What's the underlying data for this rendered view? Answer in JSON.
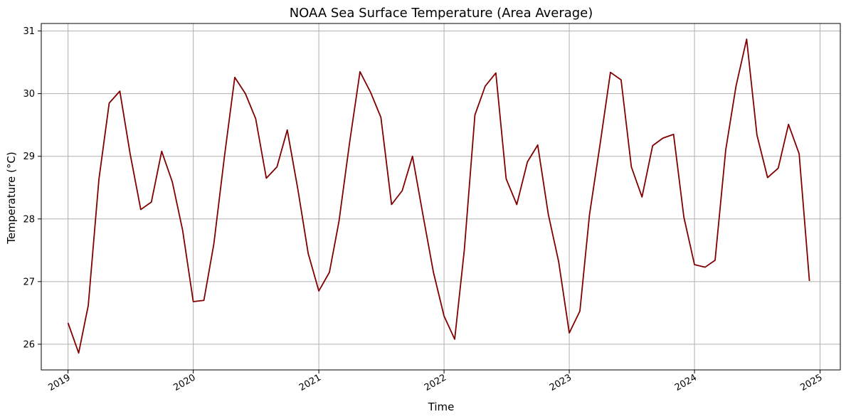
{
  "chart_data": {
    "type": "line",
    "title": "NOAA Sea Surface Temperature (Area Average)",
    "xlabel": "Time",
    "ylabel": "Temperature (°C)",
    "xlim": [
      "2018-10-15",
      "2025-03-01"
    ],
    "ylim": [
      25.59,
      31.12
    ],
    "x_ticks": [
      "2019-01-01",
      "2020-01-01",
      "2021-01-01",
      "2022-01-01",
      "2023-01-01",
      "2024-01-01",
      "2025-01-01"
    ],
    "x_tick_labels": [
      "2019",
      "2020",
      "2021",
      "2022",
      "2023",
      "2024",
      "2025"
    ],
    "y_ticks": [
      26,
      27,
      28,
      29,
      30,
      31
    ],
    "y_tick_labels": [
      "26",
      "27",
      "28",
      "29",
      "30",
      "31"
    ],
    "grid": true,
    "line_color": "#800000",
    "series": [
      {
        "x": [
          "2019-01",
          "2019-02",
          "2019-03",
          "2019-04",
          "2019-05",
          "2019-06",
          "2019-07",
          "2019-08",
          "2019-09",
          "2019-10",
          "2019-11",
          "2019-12",
          "2020-01",
          "2020-02",
          "2020-03",
          "2020-04",
          "2020-05",
          "2020-06",
          "2020-07",
          "2020-08",
          "2020-09",
          "2020-10",
          "2020-11",
          "2020-12",
          "2021-01",
          "2021-02",
          "2021-03",
          "2021-04",
          "2021-05",
          "2021-06",
          "2021-07",
          "2021-08",
          "2021-09",
          "2021-10",
          "2021-11",
          "2021-12",
          "2022-01",
          "2022-02",
          "2022-03",
          "2022-04",
          "2022-05",
          "2022-06",
          "2022-07",
          "2022-08",
          "2022-09",
          "2022-10",
          "2022-11",
          "2022-12",
          "2023-01",
          "2023-02",
          "2023-03",
          "2023-04",
          "2023-05",
          "2023-06",
          "2023-07",
          "2023-08",
          "2023-09",
          "2023-10",
          "2023-11",
          "2023-12",
          "2024-01",
          "2024-02",
          "2024-03",
          "2024-04",
          "2024-05",
          "2024-06",
          "2024-07",
          "2024-08",
          "2024-09",
          "2024-10",
          "2024-11",
          "2024-12"
        ],
        "values": [
          26.34,
          25.86,
          26.62,
          28.63,
          29.85,
          30.04,
          29.04,
          28.15,
          28.27,
          29.08,
          28.59,
          27.82,
          26.68,
          26.7,
          27.6,
          29.0,
          30.26,
          30.0,
          29.6,
          28.65,
          28.83,
          29.42,
          28.47,
          27.45,
          26.85,
          27.15,
          27.97,
          29.23,
          30.35,
          30.02,
          29.62,
          28.23,
          28.45,
          29.0,
          28.05,
          27.15,
          26.45,
          26.08,
          27.5,
          29.66,
          30.12,
          30.33,
          28.64,
          28.23,
          28.91,
          29.18,
          28.07,
          27.32,
          26.18,
          26.53,
          28.07,
          29.2,
          30.34,
          30.22,
          28.83,
          28.35,
          29.17,
          29.29,
          29.35,
          28.03,
          27.27,
          27.23,
          27.34,
          29.1,
          30.12,
          30.87,
          29.34,
          28.66,
          28.81,
          29.51,
          29.04,
          27.01
        ]
      }
    ]
  }
}
